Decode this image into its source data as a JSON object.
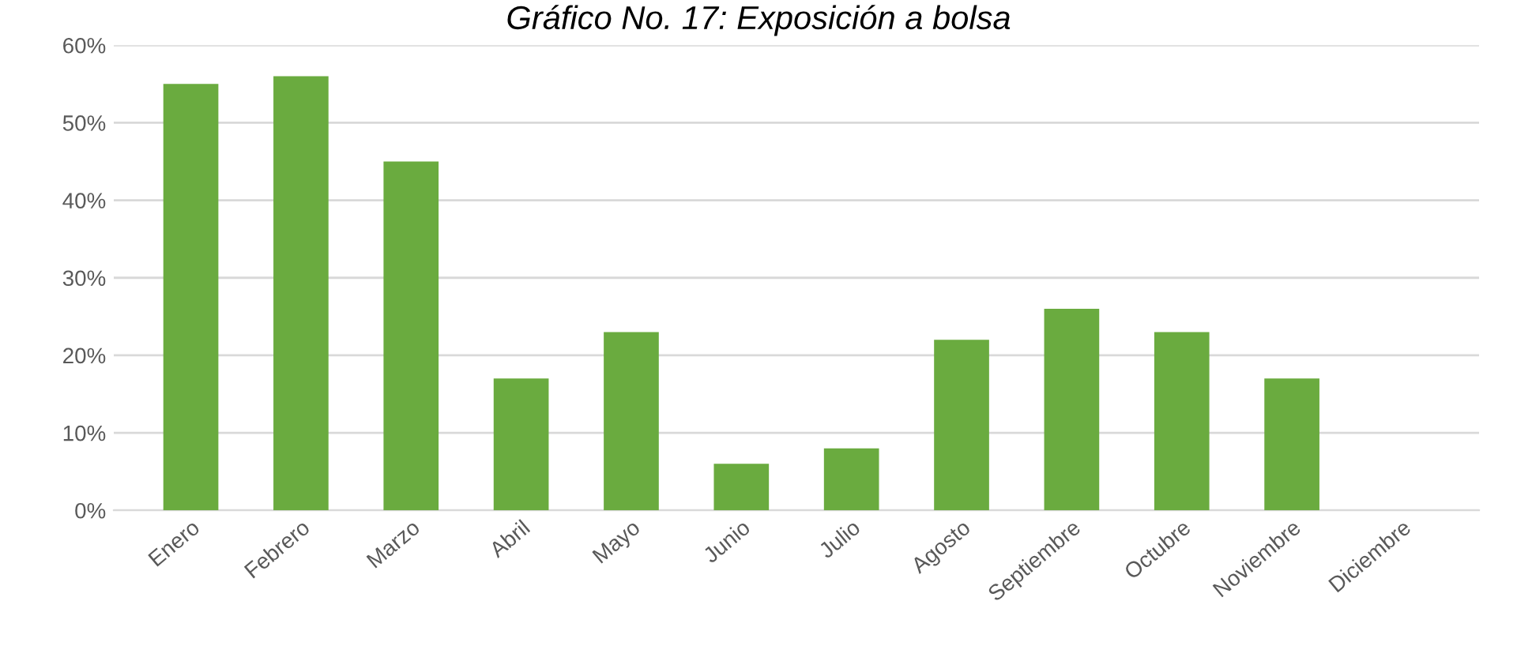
{
  "chart_data": {
    "type": "bar",
    "title": "Gráfico No. 17: Exposición a bolsa",
    "categories": [
      "Enero",
      "Febrero",
      "Marzo",
      "Abril",
      "Mayo",
      "Junio",
      "Julio",
      "Agosto",
      "Septiembre",
      "Octubre",
      "Noviembre",
      "Diciembre"
    ],
    "values": [
      55,
      56,
      45,
      17,
      23,
      6,
      8,
      22,
      26,
      23,
      17,
      0
    ],
    "color": "#6aab3f",
    "ylim": [
      0,
      60
    ],
    "yticks": [
      {
        "value": 0,
        "label": "0%"
      },
      {
        "value": 10,
        "label": "10%"
      },
      {
        "value": 20,
        "label": "20%"
      },
      {
        "value": 30,
        "label": "30%"
      },
      {
        "value": 40,
        "label": "40%"
      },
      {
        "value": 50,
        "label": "50%"
      },
      {
        "value": 60,
        "label": "60%"
      }
    ],
    "grid": "y"
  }
}
